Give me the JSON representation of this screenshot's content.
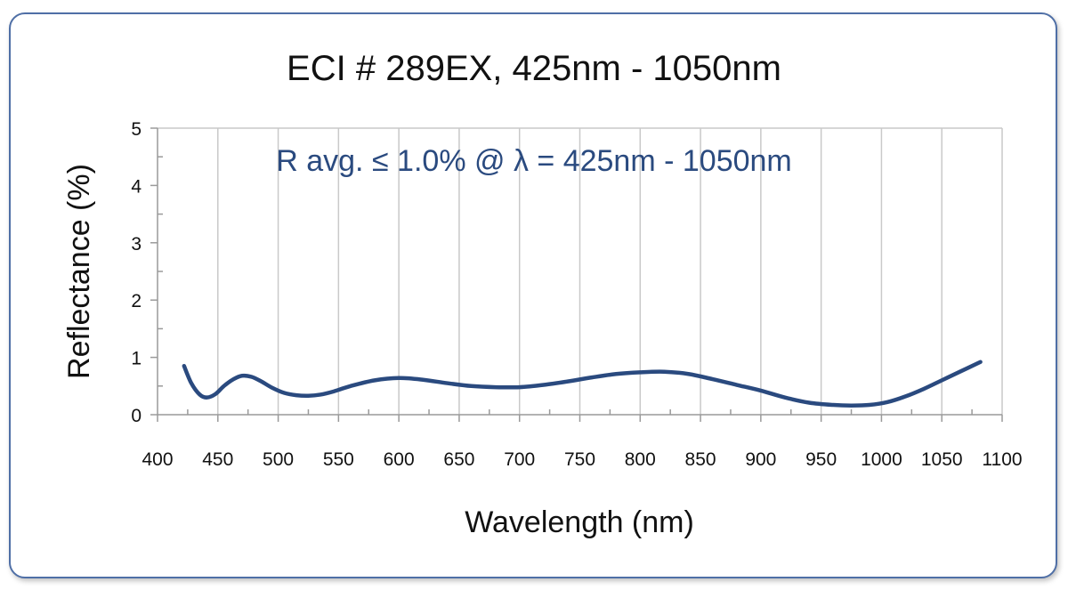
{
  "chart_data": {
    "type": "line",
    "title": "ECI # 289EX, 425nm - 1050nm",
    "annotation": "R avg. ≤ 1.0% @ λ = 425nm - 1050nm",
    "xlabel": "Wavelength (nm)",
    "ylabel": "Reflectance (%)",
    "xlim": [
      400,
      1100
    ],
    "ylim": [
      0,
      5
    ],
    "xticks": [
      400,
      450,
      500,
      550,
      600,
      650,
      700,
      750,
      800,
      850,
      900,
      950,
      1000,
      1050,
      1100
    ],
    "yticks": [
      0,
      1,
      2,
      3,
      4,
      5
    ],
    "grid": true,
    "series": [
      {
        "color": "#2a4a7f",
        "x": [
          422,
          428,
          435,
          441,
          448,
          455,
          463,
          470,
          478,
          486,
          495,
          505,
          515,
          525,
          535,
          545,
          560,
          580,
          600,
          620,
          640,
          660,
          680,
          700,
          720,
          740,
          760,
          780,
          800,
          820,
          840,
          860,
          880,
          900,
          920,
          940,
          960,
          975,
          990,
          1005,
          1020,
          1035,
          1050,
          1065,
          1082
        ],
        "y": [
          0.85,
          0.55,
          0.35,
          0.3,
          0.36,
          0.5,
          0.62,
          0.68,
          0.66,
          0.58,
          0.47,
          0.38,
          0.34,
          0.33,
          0.35,
          0.4,
          0.5,
          0.6,
          0.64,
          0.61,
          0.55,
          0.5,
          0.48,
          0.48,
          0.52,
          0.58,
          0.65,
          0.71,
          0.74,
          0.75,
          0.71,
          0.62,
          0.52,
          0.42,
          0.3,
          0.21,
          0.17,
          0.16,
          0.17,
          0.22,
          0.32,
          0.45,
          0.6,
          0.75,
          0.92
        ]
      }
    ]
  }
}
